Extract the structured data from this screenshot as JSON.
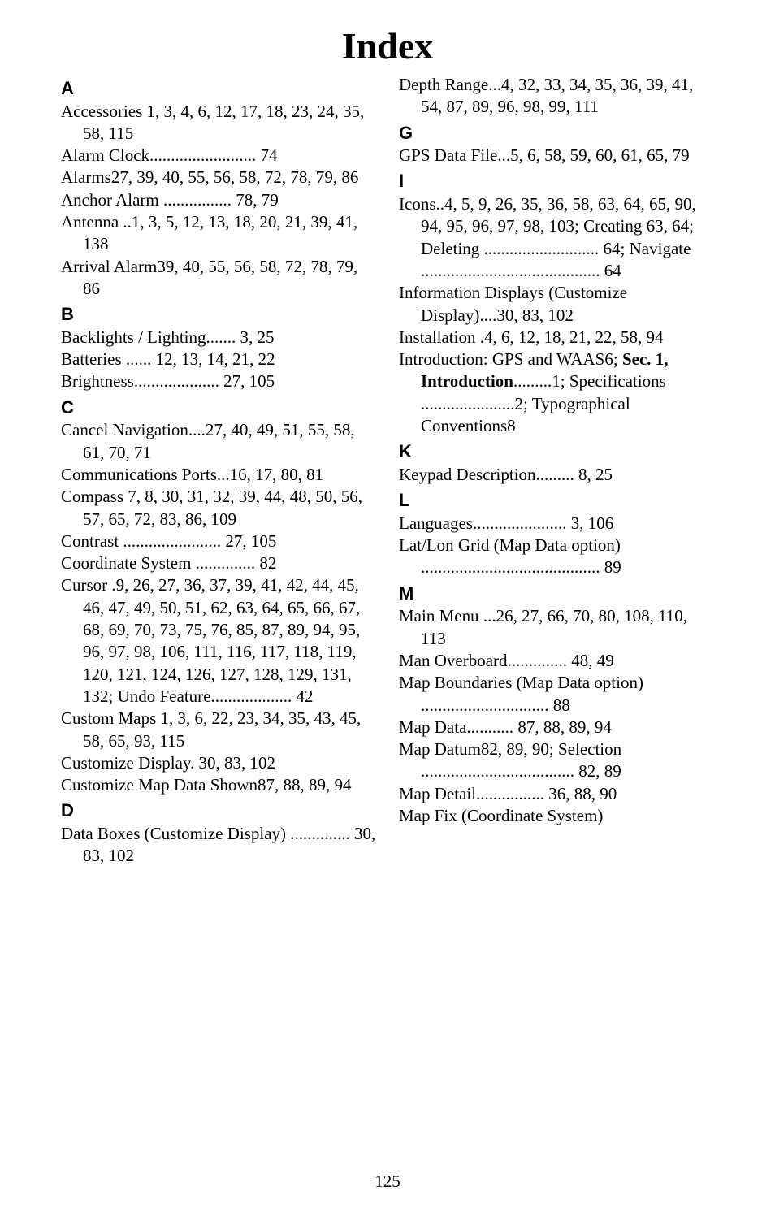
{
  "title": "Index",
  "page_number": "125",
  "sections": [
    {
      "head": "A",
      "entries": [
        "Accessories 1, 3, 4, 6, 12, 17, 18, 23, 24, 35, 58, 115",
        "Alarm Clock......................... 74",
        "Alarms27, 39, 40, 55, 56, 58, 72, 78, 79, 86",
        "Anchor Alarm ................ 78, 79",
        "Antenna ..1, 3, 5, 12, 13, 18, 20, 21, 39, 41, 138",
        "Arrival Alarm39, 40, 55, 56, 58, 72, 78, 79, 86"
      ]
    },
    {
      "head": "B",
      "entries": [
        "Backlights / Lighting....... 3, 25",
        "Batteries ...... 12, 13, 14, 21, 22",
        "Brightness.................... 27, 105"
      ]
    },
    {
      "head": "C",
      "entries": [
        "Cancel Navigation....27, 40, 49, 51, 55, 58, 61, 70, 71",
        "Communications Ports...16, 17, 80, 81",
        "Compass 7, 8, 30, 31, 32, 39, 44, 48, 50, 56, 57, 65, 72, 83, 86, 109",
        "Contrast ....................... 27, 105",
        "Coordinate System .............. 82",
        "Cursor .9, 26, 27, 36, 37, 39, 41, 42, 44, 45, 46, 47, 49, 50, 51, 62, 63, 64, 65, 66, 67, 68, 69, 70, 73, 75, 76, 85, 87, 89, 94, 95, 96, 97, 98, 106, 111, 116, 117, 118, 119, 120, 121, 124, 126, 127, 128, 129, 131, 132; Undo Feature................... 42",
        "Custom Maps 1, 3, 6, 22, 23, 34, 35, 43, 45, 58, 65, 93, 115",
        "Customize Display. 30, 83, 102",
        "Customize Map Data Shown87, 88, 89, 94"
      ]
    },
    {
      "head": "D",
      "entries": [
        "Data Boxes (Customize Display) .............. 30, 83, 102",
        "Depth Range...4, 32, 33, 34, 35, 36, 39, 41, 54, 87, 89, 96, 98, 99, 111"
      ]
    },
    {
      "head": "G",
      "entries": [
        "GPS Data File...5, 6, 58, 59, 60, 61, 65, 79"
      ]
    },
    {
      "head": "I",
      "entries": [
        "Icons..4, 5, 9, 26, 35, 36, 58, 63, 64, 65, 90, 94, 95, 96, 97, 98, 103; Creating 63, 64; Deleting ........................... 64; Navigate .......................................... 64",
        "Information Displays (Customize Display)....30, 83, 102",
        "Installation .4, 6, 12, 18, 21, 22, 58, 94",
        {
          "type": "intro",
          "parts": [
            {
              "text": "Introduction: GPS and WAAS6; ",
              "bold": false
            },
            {
              "text": "Sec. 1, Introduction",
              "bold": true
            },
            {
              "text": ".........1; Specifications ......................2; Typographical Conventions8",
              "bold": false
            }
          ]
        }
      ]
    },
    {
      "head": "K",
      "entries": [
        "Keypad Description......... 8, 25"
      ]
    },
    {
      "head": "L",
      "entries": [
        "Languages...................... 3, 106",
        "Lat/Lon Grid (Map Data option) .......................................... 89"
      ]
    },
    {
      "head": "M",
      "entries": [
        "Main Menu ...26, 27, 66, 70, 80, 108, 110, 113",
        "Man Overboard.............. 48, 49",
        "Map Boundaries (Map Data option) .............................. 88",
        "Map Data........... 87, 88, 89, 94",
        "Map Datum82, 89, 90; Selection .................................... 82, 89",
        "Map Detail................ 36, 88, 90",
        "Map Fix (Coordinate System)"
      ]
    }
  ]
}
